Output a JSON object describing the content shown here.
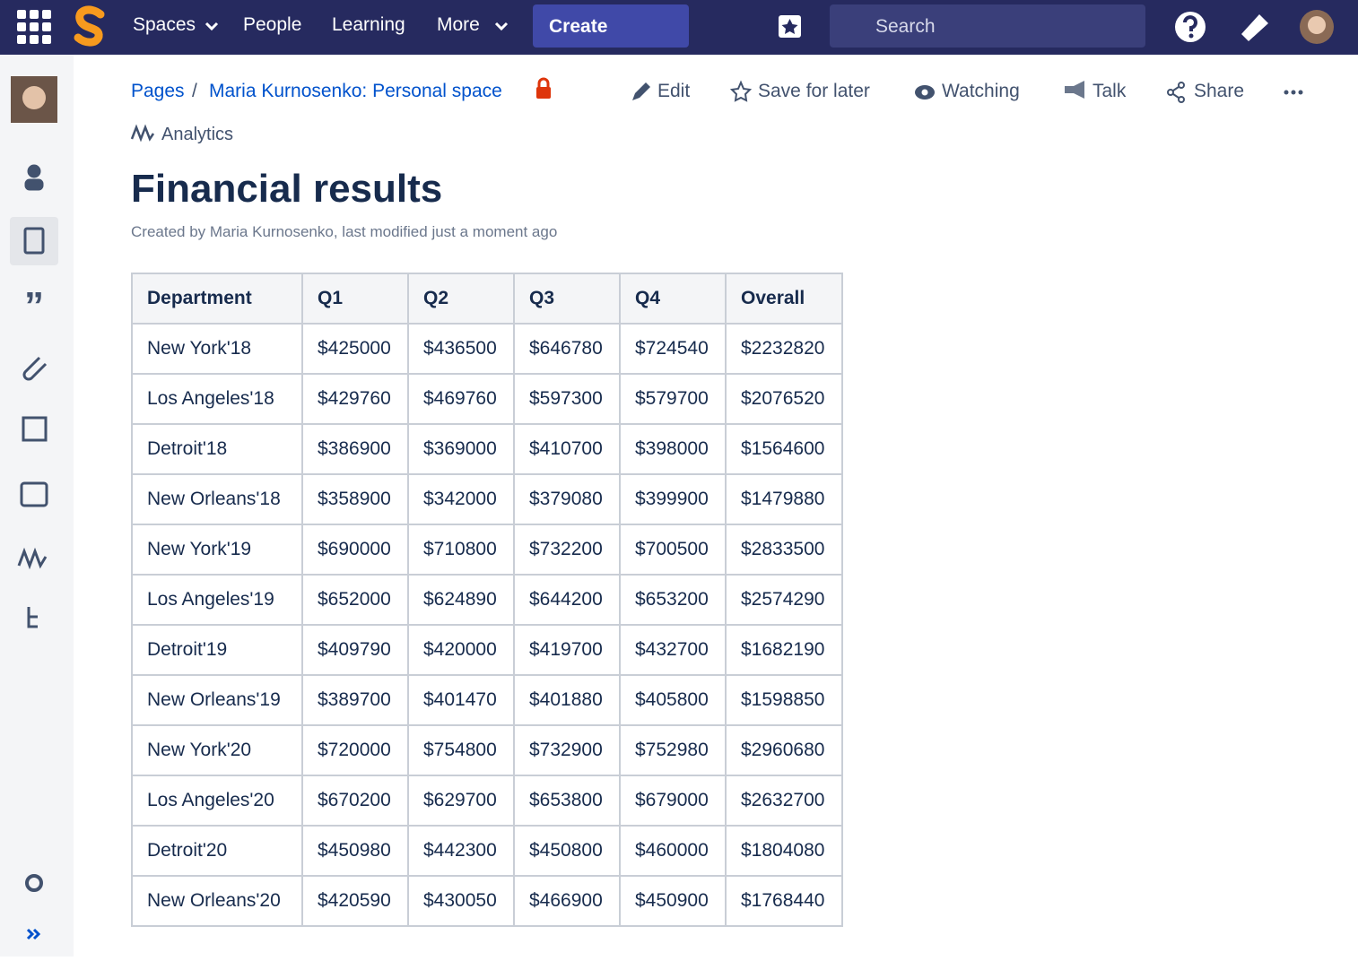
{
  "nav": {
    "items": [
      "Spaces",
      "People",
      "Learning",
      "More"
    ],
    "create": "Create",
    "search": "Search"
  },
  "breadcrumbs": {
    "items": [
      "Pages",
      "Maria Kurnosenko: Personal space"
    ],
    "separator": "/"
  },
  "actions": [
    "Edit",
    "Save for later",
    "Watching",
    "Talk",
    "Share"
  ],
  "analytics": "Analytics",
  "page": {
    "title": "Financial results",
    "byline": "Created by Maria Kurnosenko, last modified just a moment ago"
  },
  "table": {
    "header": [
      "Department",
      "Q1",
      "Q2",
      "Q3",
      "Q4",
      "Overall"
    ],
    "rows": [
      [
        "New York'18",
        "$425000",
        "$436500",
        "$646780",
        "$724540",
        "$2232820"
      ],
      [
        "Los Angeles'18",
        "$429760",
        "$469760",
        "$597300",
        "$579700",
        "$2076520"
      ],
      [
        "Detroit'18",
        "$386900",
        "$369000",
        "$410700",
        "$398000",
        "$1564600"
      ],
      [
        "New Orleans'18",
        "$358900",
        "$342000",
        "$379080",
        "$399900",
        "$1479880"
      ],
      [
        "New York'19",
        "$690000",
        "$710800",
        "$732200",
        "$700500",
        "$2833500"
      ],
      [
        "Los Angeles'19",
        "$652000",
        "$624890",
        "$644200",
        "$653200",
        "$2574290"
      ],
      [
        "Detroit'19",
        "$409790",
        "$420000",
        "$419700",
        "$432700",
        "$1682190"
      ],
      [
        "New Orleans'19",
        "$389700",
        "$401470",
        "$401880",
        "$405800",
        "$1598850"
      ],
      [
        "New York'20",
        "$720000",
        "$754800",
        "$732900",
        "$752980",
        "$2960680"
      ],
      [
        "Los Angeles'20",
        "$670200",
        "$629700",
        "$653800",
        "$679000",
        "$2632700"
      ],
      [
        "Detroit'20",
        "$450980",
        "$442300",
        "$450800",
        "$460000",
        "$1804080"
      ],
      [
        "New Orleans'20",
        "$420590",
        "$430050",
        "$466900",
        "$450900",
        "$1768440"
      ]
    ]
  }
}
